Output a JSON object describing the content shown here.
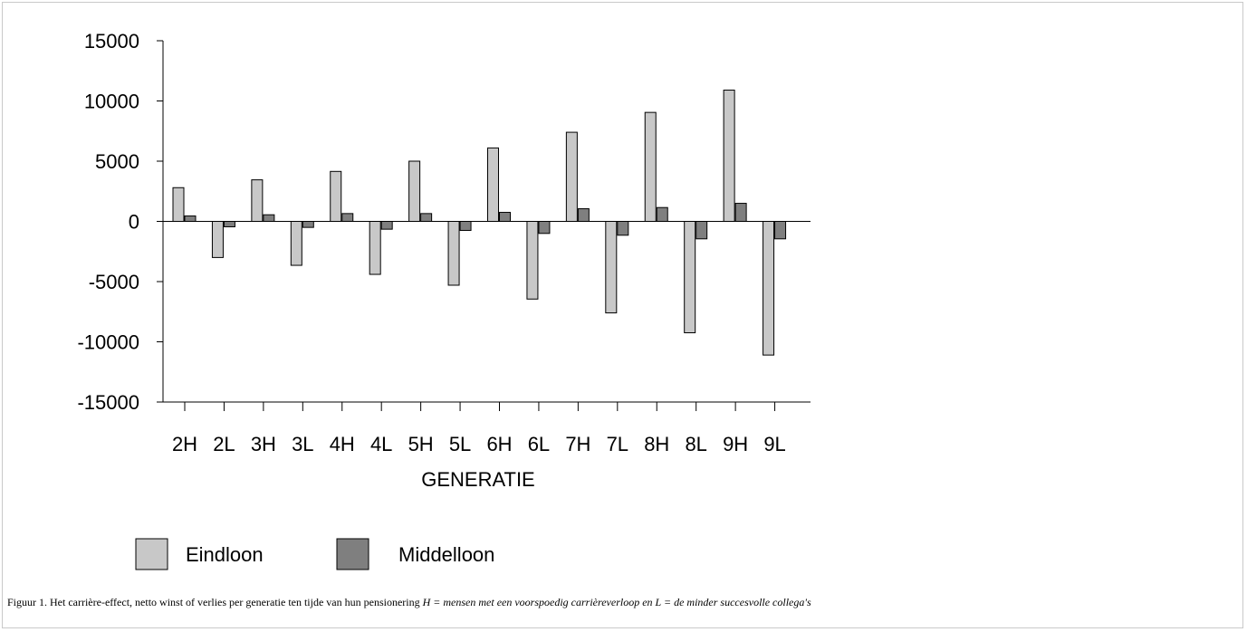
{
  "chart_data": {
    "type": "bar",
    "categories": [
      "2H",
      "2L",
      "3H",
      "3L",
      "4H",
      "4L",
      "5H",
      "5L",
      "6H",
      "6L",
      "7H",
      "7L",
      "8H",
      "8L",
      "9H",
      "9L"
    ],
    "series": [
      {
        "name": "Eindloon",
        "color": "#c8c8c8",
        "values": [
          2800,
          -3000,
          3450,
          -3650,
          4150,
          -4400,
          5000,
          -5300,
          6100,
          -6450,
          7400,
          -7600,
          9050,
          -9250,
          10900,
          -11100
        ]
      },
      {
        "name": "Middelloon",
        "color": "#7f7f7f",
        "values": [
          450,
          -450,
          550,
          -500,
          650,
          -650,
          650,
          -750,
          750,
          -1000,
          1050,
          -1150,
          1150,
          -1450,
          1500,
          -1450
        ]
      }
    ],
    "xlabel": "GENERATIE",
    "ylabel": "",
    "ylim": [
      -15000,
      15000
    ],
    "yticks": [
      "15000",
      "10000",
      "5000",
      "0",
      "-5000",
      "-10000",
      "-15000"
    ],
    "ytick_values": [
      15000,
      10000,
      5000,
      0,
      -5000,
      -10000,
      -15000
    ],
    "grid": false,
    "legend_position": "bottom"
  },
  "caption": {
    "text": "Figuur 1. Het carrière-effect, netto winst of verlies per generatie ten tijde van hun pensionering ",
    "italic": "H = mensen met een voorspoedig carrièreverloop en L = de minder succesvolle collega's"
  }
}
